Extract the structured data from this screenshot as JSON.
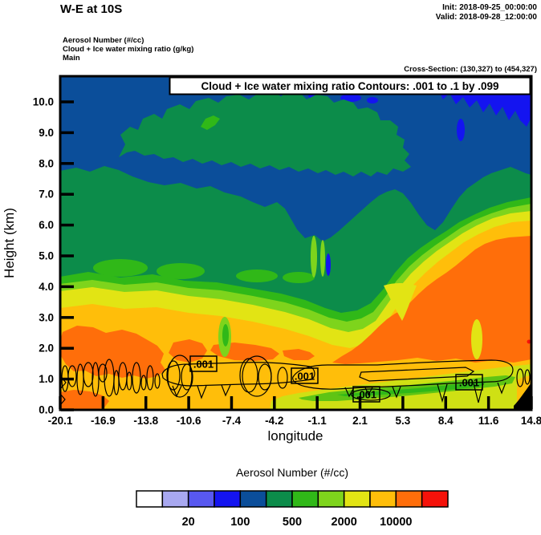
{
  "header": {
    "title": "W-E at 10S",
    "init": "Init: 2018-09-25_00:00:00",
    "valid": "Valid: 2018-09-28_12:00:00",
    "field_lines": [
      "Aerosol Number   (#/cc)",
      "Cloud + Ice water mixing ratio   (g/kg)",
      "Main"
    ],
    "cross_section": "Cross-Section: (130,327) to (454,327)"
  },
  "chart_data": {
    "type": "heatmap",
    "subtype": "filled-contour-vertical-cross-section",
    "title": "W-E at 10S",
    "overlay_box_title": "Cloud + Ice water mixing ratio Contours: .001 to .1 by .099",
    "fill_field": "Aerosol Number (#/cc)",
    "line_field": "Cloud + Ice water mixing ratio (g/kg)",
    "xlabel": "longitude",
    "ylabel": "Height (km)",
    "x_ticks": [
      "-20.1",
      "-16.9",
      "-13.8",
      "-10.6",
      "-7.4",
      "-4.2",
      "-1.1",
      "2.1",
      "5.3",
      "8.4",
      "11.6",
      "14.8"
    ],
    "y_ticks": [
      "0.0",
      "1.0",
      "2.0",
      "3.0",
      "4.0",
      "5.0",
      "6.0",
      "7.0",
      "8.0",
      "9.0",
      "10.0"
    ],
    "x_range": [
      -20.1,
      14.8
    ],
    "y_range_km": [
      0.0,
      10.85
    ],
    "grid": false,
    "contour_line_levels": {
      "from": 0.001,
      "to": 0.1,
      "by": 0.099
    },
    "contour_labels": [
      ".001",
      ".001",
      ".001",
      ".001"
    ],
    "colorbar": {
      "title": "Aerosol Number  (#/cc)",
      "position": "bottom",
      "colors": [
        "#FFFFFF",
        "#A8A8F0",
        "#5858F0",
        "#1414F0",
        "#0B4E9A",
        "#0C8C4A",
        "#30B818",
        "#7ED41C",
        "#E2E414",
        "#FFBE0A",
        "#FF6E0A",
        "#F5120A"
      ],
      "tick_labels": [
        "20",
        "100",
        "500",
        "2000",
        "10000"
      ],
      "tick_boundary_indices": [
        2,
        4,
        6,
        8,
        10
      ]
    },
    "extra_colors": {
      "chartreuse": "#CFE014",
      "band_green": "#5FC414",
      "terrain": "#000000"
    }
  }
}
